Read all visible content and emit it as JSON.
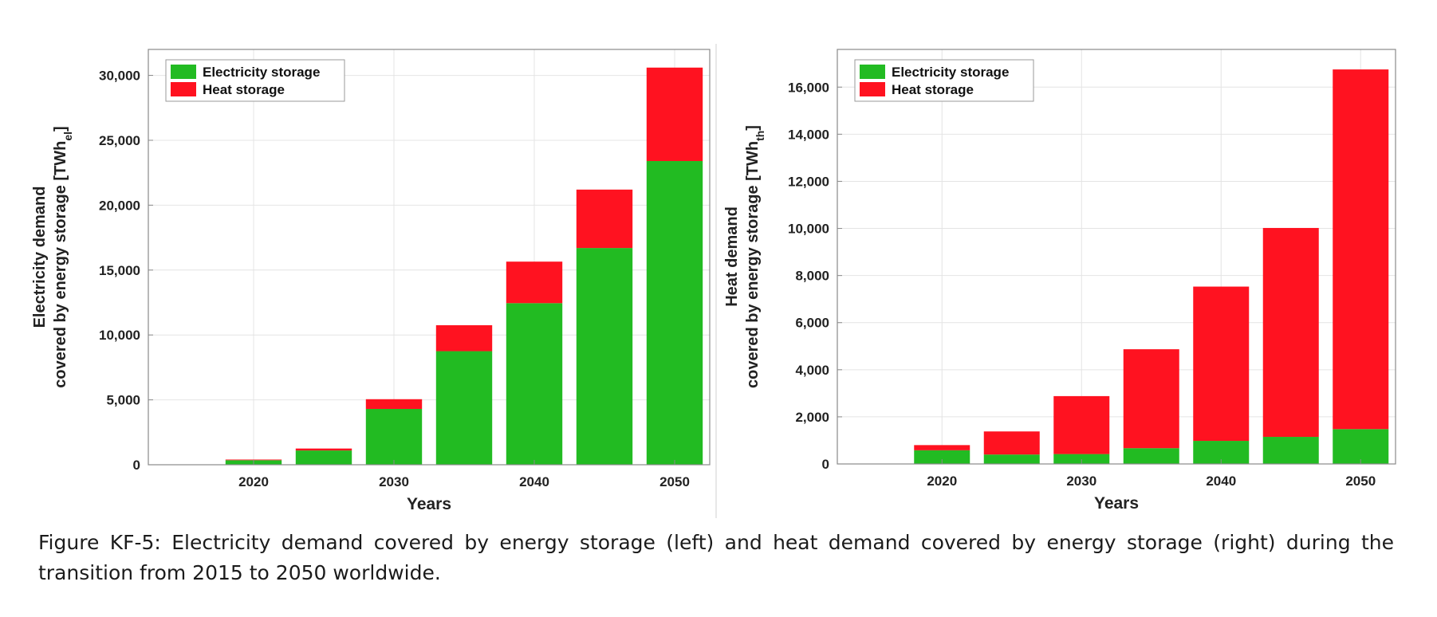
{
  "colors": {
    "electricity": "#22bb22",
    "heat": "#ff1220",
    "axis": "#8a8a8a",
    "grid": "#e4e4e4"
  },
  "chart_data": [
    {
      "type": "bar",
      "stacked": true,
      "categories": [
        "2015",
        "2020",
        "2025",
        "2030",
        "2035",
        "2040",
        "2045",
        "2050"
      ],
      "tick_labels": [
        "2020",
        "2030",
        "2040",
        "2050"
      ],
      "ytick_labels": [
        "0",
        "5,000",
        "10,000",
        "15,000",
        "20,000",
        "25,000",
        "30,000"
      ],
      "series": [
        {
          "name": "Electricity storage",
          "values": [
            0,
            350,
            1100,
            4300,
            8750,
            12450,
            16700,
            23400
          ]
        },
        {
          "name": "Heat storage",
          "values": [
            0,
            50,
            150,
            750,
            2000,
            3200,
            4500,
            7200
          ]
        }
      ],
      "xlabel": "Years",
      "ylabel_line1": "Electricity demand",
      "ylabel_line2": "covered by energy storage [TWh",
      "ylabel_sub": "el",
      "ylabel_end": "]",
      "ylim": [
        0,
        32000
      ],
      "grid": true,
      "legend_position": "top-left"
    },
    {
      "type": "bar",
      "stacked": true,
      "categories": [
        "2015",
        "2020",
        "2025",
        "2030",
        "2035",
        "2040",
        "2045",
        "2050"
      ],
      "tick_labels": [
        "2020",
        "2030",
        "2040",
        "2050"
      ],
      "ytick_labels": [
        "0",
        "2,000",
        "4,000",
        "6,000",
        "8,000",
        "10,000",
        "12,000",
        "14,000",
        "16,000"
      ],
      "series": [
        {
          "name": "Electricity storage",
          "values": [
            0,
            580,
            400,
            420,
            670,
            980,
            1150,
            1480
          ]
        },
        {
          "name": "Heat storage",
          "values": [
            0,
            220,
            980,
            2460,
            4200,
            6550,
            8870,
            15270
          ]
        }
      ],
      "xlabel": "Years",
      "ylabel_line1": "Heat demand",
      "ylabel_line2": "covered by energy storage [TWh",
      "ylabel_sub": "th",
      "ylabel_end": "]",
      "ylim": [
        0,
        17600
      ],
      "grid": true,
      "legend_position": "top-left"
    }
  ],
  "caption": "Figure KF-5: Electricity demand covered by energy storage (left) and heat demand covered by energy storage (right) during the transition from 2015 to 2050 worldwide."
}
